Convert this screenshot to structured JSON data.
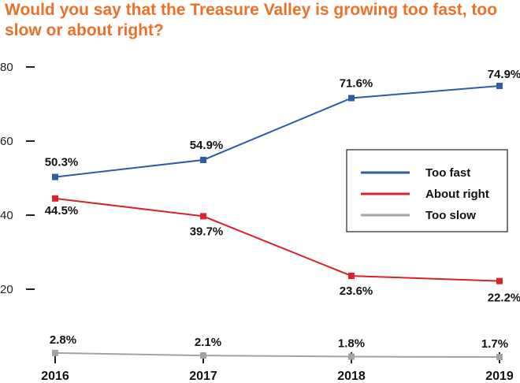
{
  "chart_data": {
    "type": "line",
    "title": "Would you say that the Treasure Valley is growing too fast, too slow or about right?",
    "categories": [
      "2016",
      "2017",
      "2018",
      "2019"
    ],
    "yticks": [
      20,
      40,
      60,
      80
    ],
    "ylim": [
      0,
      80
    ],
    "legend_position": "right-center",
    "series": [
      {
        "name": "Too fast",
        "color": "#2d5ca8",
        "values": [
          50.3,
          54.9,
          71.6,
          74.9
        ],
        "labels": [
          "50.3%",
          "54.9%",
          "71.6%",
          "74.9%"
        ]
      },
      {
        "name": "About right",
        "color": "#d8232a",
        "values": [
          44.5,
          39.7,
          23.6,
          22.2
        ],
        "labels": [
          "44.5%",
          "39.7%",
          "23.6%",
          "22.2%"
        ]
      },
      {
        "name": "Too slow",
        "color": "#a3a3a3",
        "values": [
          2.8,
          2.1,
          1.8,
          1.7
        ],
        "labels": [
          "2.8%",
          "2.1%",
          "1.8%",
          "1.7%"
        ]
      }
    ]
  }
}
